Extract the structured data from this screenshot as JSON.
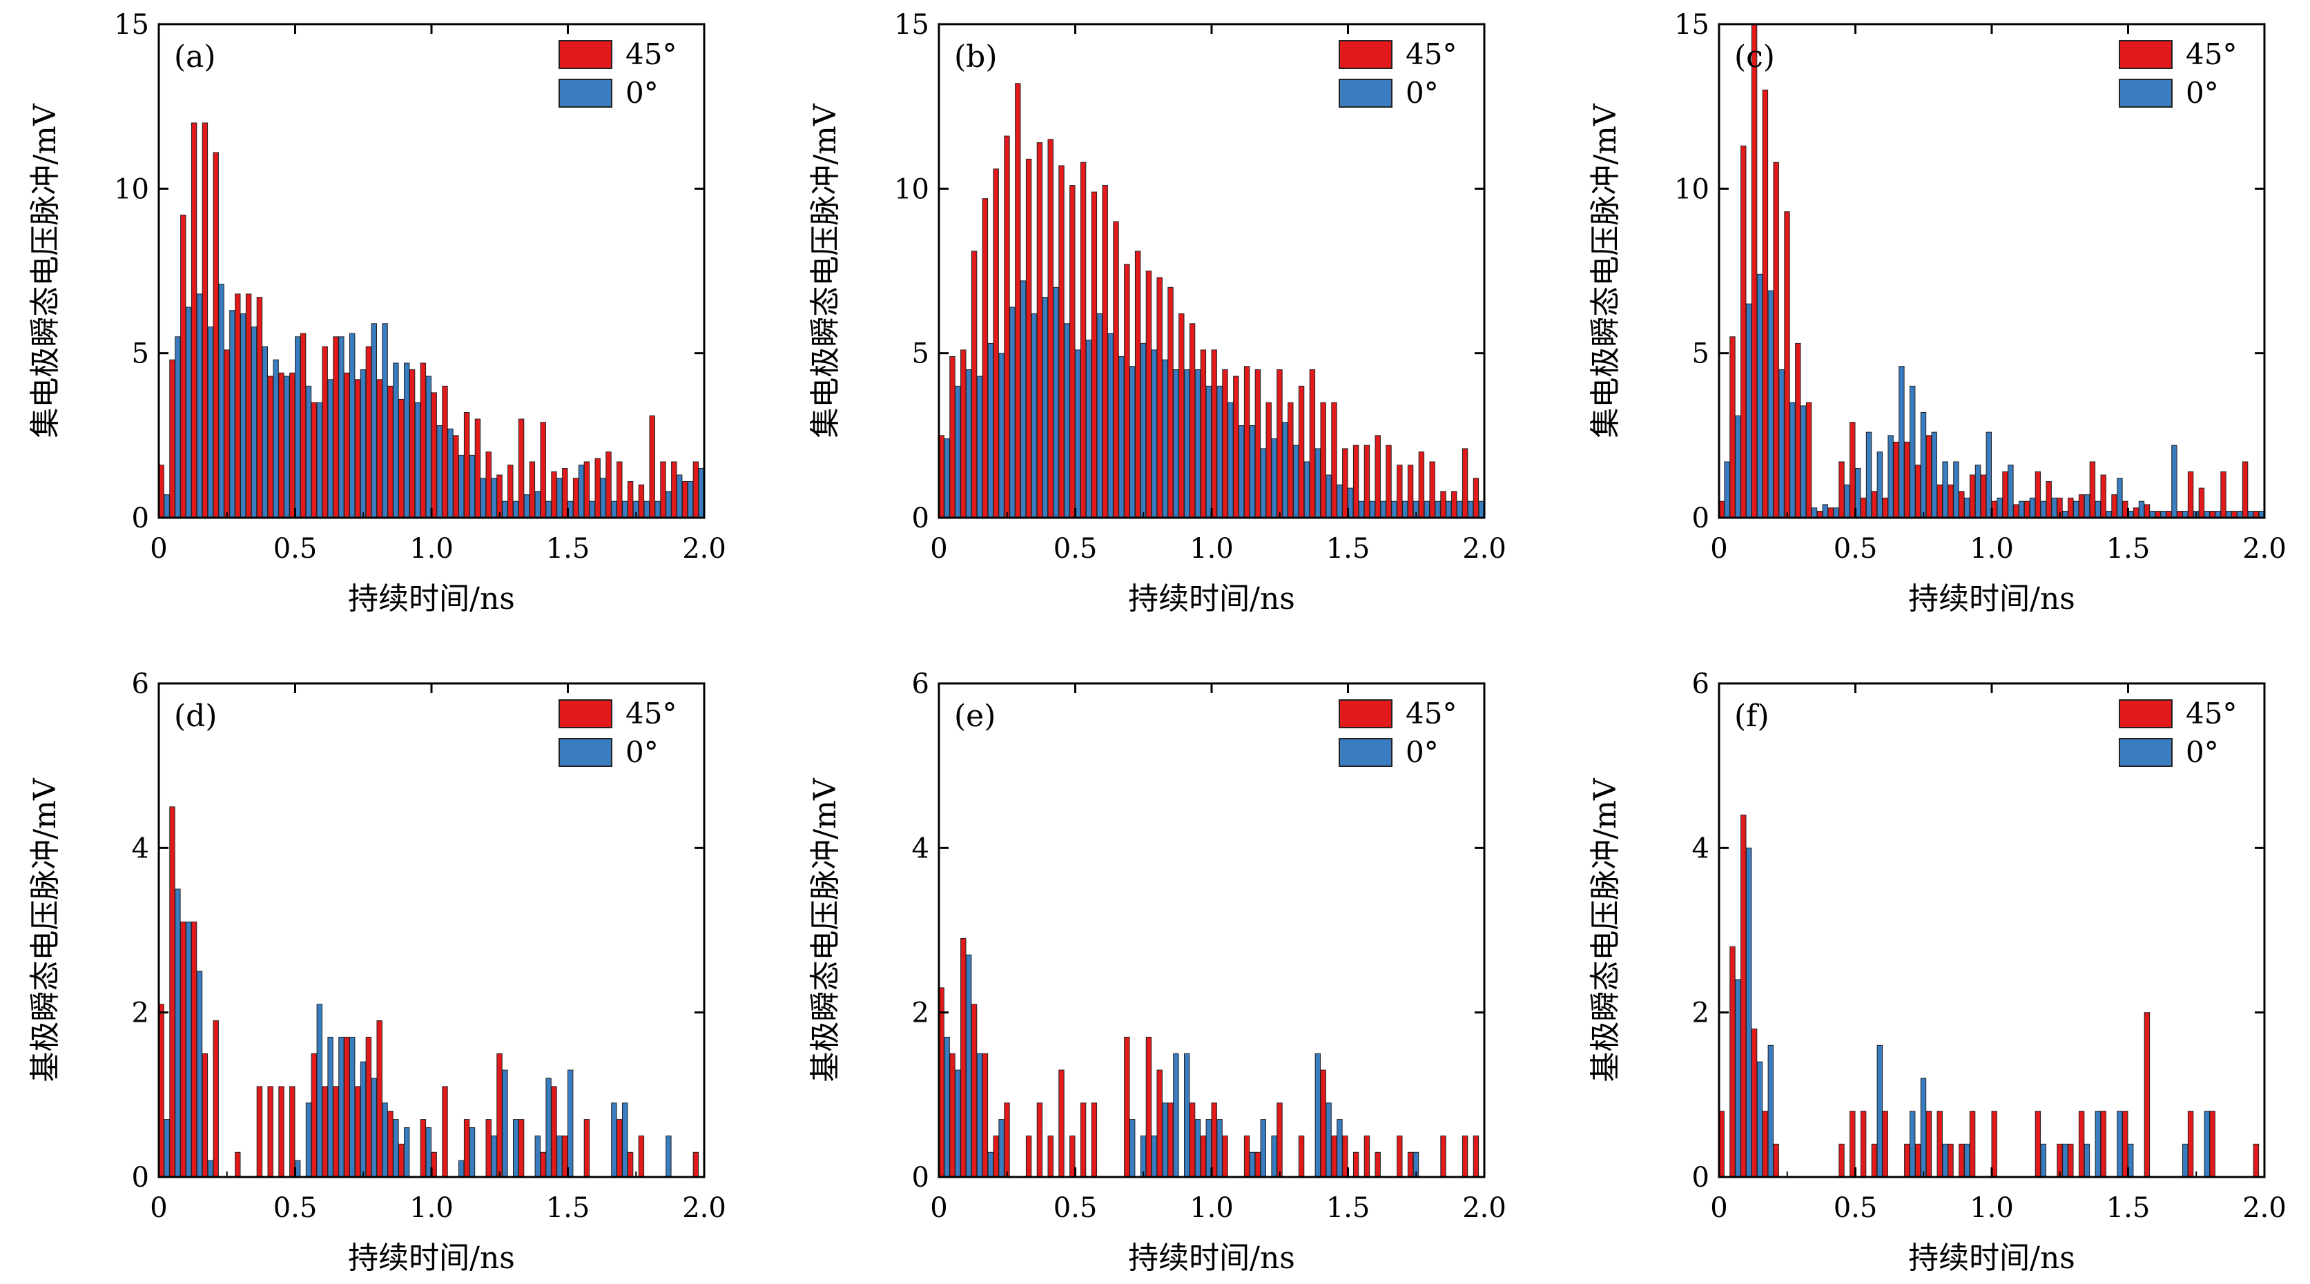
{
  "figure": {
    "legend": [
      {
        "label": "45°",
        "color": "#e31a1c"
      },
      {
        "label": "0°",
        "color": "#3a7cc0"
      }
    ],
    "colors": {
      "series_45": "#e31a1c",
      "series_0": "#3a7cc0",
      "frame": "#000000"
    }
  },
  "chart_data": [
    {
      "type": "bar",
      "panel_label": "(a)",
      "title": "",
      "xlabel": "持续时间/ns",
      "ylabel": "集电极瞬态电压脉冲/mV",
      "xlim": [
        0,
        2.0
      ],
      "ylim": [
        0,
        15
      ],
      "xticks": [
        "0",
        "0.5",
        "1.0",
        "1.5",
        "2.0"
      ],
      "yticks": [
        "0",
        "5",
        "10",
        "15"
      ],
      "legend_entries": [
        "45°",
        "0°"
      ],
      "bin_width": 0.04,
      "x": [
        0.0,
        0.04,
        0.08,
        0.12,
        0.16,
        0.2,
        0.24,
        0.28,
        0.32,
        0.36,
        0.4,
        0.44,
        0.48,
        0.52,
        0.56,
        0.6,
        0.64,
        0.68,
        0.72,
        0.76,
        0.8,
        0.84,
        0.88,
        0.92,
        0.96,
        1.0,
        1.04,
        1.08,
        1.12,
        1.16,
        1.2,
        1.24,
        1.28,
        1.32,
        1.36,
        1.4,
        1.44,
        1.48,
        1.52,
        1.56,
        1.6,
        1.64,
        1.68,
        1.72,
        1.76,
        1.8,
        1.84,
        1.88,
        1.92,
        1.96
      ],
      "series": [
        {
          "name": "45°",
          "values": [
            1.6,
            4.8,
            9.2,
            12.0,
            12.0,
            11.1,
            5.1,
            6.8,
            6.8,
            6.7,
            4.3,
            4.4,
            4.4,
            5.6,
            3.5,
            5.2,
            5.5,
            4.4,
            4.2,
            5.2,
            4.2,
            4.0,
            3.6,
            4.5,
            4.7,
            3.8,
            4.0,
            2.5,
            3.2,
            3.0,
            2.0,
            1.3,
            1.6,
            3.0,
            1.7,
            2.9,
            1.4,
            1.5,
            1.2,
            1.7,
            1.8,
            2.0,
            1.7,
            1.1,
            1.0,
            3.1,
            1.7,
            1.7,
            1.1,
            1.7
          ]
        },
        {
          "name": "0°",
          "values": [
            0.7,
            5.5,
            6.4,
            6.8,
            5.8,
            7.1,
            6.3,
            6.2,
            5.8,
            5.2,
            4.8,
            4.3,
            5.5,
            4.0,
            3.5,
            4.2,
            5.5,
            5.6,
            4.5,
            5.9,
            5.9,
            4.7,
            4.7,
            3.5,
            4.3,
            2.8,
            2.7,
            1.9,
            1.9,
            1.2,
            1.2,
            0.5,
            0.5,
            0.7,
            0.8,
            0.5,
            1.2,
            0.5,
            1.6,
            0.5,
            1.2,
            0.5,
            0.5,
            0.5,
            0.5,
            0.5,
            0.8,
            1.3,
            1.1,
            1.5
          ]
        }
      ]
    },
    {
      "type": "bar",
      "panel_label": "(b)",
      "title": "",
      "xlabel": "持续时间/ns",
      "ylabel": "集电极瞬态电压脉冲/mV",
      "xlim": [
        0,
        2.0
      ],
      "ylim": [
        0,
        15
      ],
      "xticks": [
        "0",
        "0.5",
        "1.0",
        "1.5",
        "2.0"
      ],
      "yticks": [
        "0",
        "5",
        "10",
        "15"
      ],
      "legend_entries": [
        "45°",
        "0°"
      ],
      "bin_width": 0.04,
      "x": [
        0.0,
        0.04,
        0.08,
        0.12,
        0.16,
        0.2,
        0.24,
        0.28,
        0.32,
        0.36,
        0.4,
        0.44,
        0.48,
        0.52,
        0.56,
        0.6,
        0.64,
        0.68,
        0.72,
        0.76,
        0.8,
        0.84,
        0.88,
        0.92,
        0.96,
        1.0,
        1.04,
        1.08,
        1.12,
        1.16,
        1.2,
        1.24,
        1.28,
        1.32,
        1.36,
        1.4,
        1.44,
        1.48,
        1.52,
        1.56,
        1.6,
        1.64,
        1.68,
        1.72,
        1.76,
        1.8,
        1.84,
        1.88,
        1.92,
        1.96
      ],
      "series": [
        {
          "name": "45°",
          "values": [
            2.5,
            4.9,
            5.1,
            8.1,
            9.7,
            10.6,
            11.6,
            13.2,
            10.9,
            11.4,
            11.5,
            10.7,
            10.1,
            10.8,
            9.9,
            10.1,
            9.0,
            7.7,
            8.1,
            7.5,
            7.3,
            7.0,
            6.2,
            5.9,
            5.1,
            5.1,
            4.5,
            4.3,
            4.6,
            4.5,
            3.5,
            4.5,
            3.5,
            4.0,
            4.5,
            3.5,
            3.5,
            2.1,
            2.2,
            2.2,
            2.5,
            2.2,
            1.6,
            1.6,
            2.0,
            1.7,
            0.8,
            0.8,
            2.1,
            1.2
          ]
        },
        {
          "name": "0°",
          "values": [
            2.4,
            4.0,
            4.5,
            4.3,
            5.3,
            5.0,
            6.4,
            7.2,
            6.2,
            6.7,
            7.0,
            5.9,
            5.1,
            5.4,
            6.2,
            5.6,
            4.9,
            4.6,
            5.3,
            5.1,
            4.8,
            4.5,
            4.5,
            4.5,
            4.0,
            4.0,
            3.5,
            2.8,
            2.8,
            2.1,
            2.4,
            2.9,
            2.2,
            1.7,
            2.1,
            1.3,
            1.0,
            0.9,
            0.5,
            0.5,
            0.5,
            0.5,
            0.5,
            0.5,
            0.5,
            0.5,
            0.5,
            0.5,
            0.5,
            0.5
          ]
        }
      ]
    },
    {
      "type": "bar",
      "panel_label": "(c)",
      "title": "",
      "xlabel": "持续时间/ns",
      "ylabel": "集电极瞬态电压脉冲/mV",
      "xlim": [
        0,
        2.0
      ],
      "ylim": [
        0,
        15
      ],
      "xticks": [
        "0",
        "0.5",
        "1.0",
        "1.5",
        "2.0"
      ],
      "yticks": [
        "0",
        "5",
        "10",
        "15"
      ],
      "legend_entries": [
        "45°",
        "0°"
      ],
      "bin_width": 0.04,
      "x": [
        0.0,
        0.04,
        0.08,
        0.12,
        0.16,
        0.2,
        0.24,
        0.28,
        0.32,
        0.36,
        0.4,
        0.44,
        0.48,
        0.52,
        0.56,
        0.6,
        0.64,
        0.68,
        0.72,
        0.76,
        0.8,
        0.84,
        0.88,
        0.92,
        0.96,
        1.0,
        1.04,
        1.08,
        1.12,
        1.16,
        1.2,
        1.24,
        1.28,
        1.32,
        1.36,
        1.4,
        1.44,
        1.48,
        1.52,
        1.56,
        1.6,
        1.64,
        1.68,
        1.72,
        1.76,
        1.8,
        1.84,
        1.88,
        1.92,
        1.96
      ],
      "series": [
        {
          "name": "45°",
          "values": [
            0.5,
            5.5,
            11.3,
            15.0,
            13.0,
            10.8,
            9.3,
            5.3,
            3.5,
            0.2,
            0.3,
            1.7,
            2.9,
            0.6,
            0.8,
            0.6,
            2.3,
            2.3,
            1.6,
            2.5,
            1.0,
            1.0,
            0.8,
            1.3,
            1.3,
            0.5,
            1.4,
            0.4,
            0.5,
            1.4,
            1.1,
            0.6,
            0.6,
            0.7,
            1.7,
            1.3,
            0.7,
            0.5,
            0.3,
            0.4,
            0.2,
            0.2,
            0.2,
            1.4,
            0.9,
            0.2,
            1.4,
            0.2,
            1.7,
            0.2
          ]
        },
        {
          "name": "0°",
          "values": [
            1.7,
            3.1,
            6.5,
            7.4,
            6.9,
            4.5,
            3.5,
            3.4,
            0.3,
            0.4,
            0.3,
            1.0,
            1.5,
            2.6,
            2.0,
            2.5,
            4.6,
            4.0,
            3.2,
            2.6,
            1.7,
            1.7,
            0.6,
            1.6,
            2.6,
            0.6,
            1.6,
            0.5,
            0.6,
            0.5,
            0.6,
            0.2,
            0.5,
            0.7,
            0.5,
            0.2,
            1.2,
            0.2,
            0.5,
            0.2,
            0.2,
            2.2,
            0.2,
            0.2,
            0.2,
            0.2,
            0.2,
            0.2,
            0.2,
            0.2
          ]
        }
      ]
    },
    {
      "type": "bar",
      "panel_label": "(d)",
      "title": "",
      "xlabel": "持续时间/ns",
      "ylabel": "基极瞬态电压脉冲/mV",
      "xlim": [
        0,
        2.0
      ],
      "ylim": [
        0,
        6
      ],
      "xticks": [
        "0",
        "0.5",
        "1.0",
        "1.5",
        "2.0"
      ],
      "yticks": [
        "0",
        "2",
        "4",
        "6"
      ],
      "legend_entries": [
        "45°",
        "0°"
      ],
      "bin_width": 0.04,
      "x": [
        0.0,
        0.04,
        0.08,
        0.12,
        0.16,
        0.2,
        0.24,
        0.28,
        0.32,
        0.36,
        0.4,
        0.44,
        0.48,
        0.52,
        0.56,
        0.6,
        0.64,
        0.68,
        0.72,
        0.76,
        0.8,
        0.84,
        0.88,
        0.92,
        0.96,
        1.0,
        1.04,
        1.08,
        1.12,
        1.16,
        1.2,
        1.24,
        1.28,
        1.32,
        1.36,
        1.4,
        1.44,
        1.48,
        1.52,
        1.56,
        1.6,
        1.64,
        1.68,
        1.72,
        1.76,
        1.8,
        1.84,
        1.88,
        1.92,
        1.96
      ],
      "series": [
        {
          "name": "45°",
          "values": [
            2.1,
            4.5,
            3.1,
            3.1,
            1.5,
            1.9,
            0,
            0.3,
            0,
            1.1,
            1.1,
            1.1,
            1.1,
            0,
            1.5,
            1.1,
            1.1,
            1.7,
            1.1,
            1.7,
            1.9,
            0.8,
            0.4,
            0,
            0.7,
            0.3,
            1.1,
            0,
            0.7,
            0,
            0.7,
            1.5,
            0,
            0.7,
            0,
            0.3,
            1.1,
            0.5,
            0,
            0.7,
            0,
            0,
            0.7,
            0.3,
            0.5,
            0,
            0,
            0,
            0,
            0.3
          ]
        },
        {
          "name": "0°",
          "values": [
            0.7,
            3.5,
            3.1,
            2.5,
            0.2,
            0,
            0,
            0,
            0,
            0,
            0,
            0,
            0.2,
            0.9,
            2.1,
            1.7,
            1.7,
            1.7,
            1.4,
            1.2,
            0.9,
            0.7,
            0.6,
            0,
            0.6,
            0,
            0,
            0.2,
            0.6,
            0,
            0.5,
            1.3,
            0.7,
            0,
            0.5,
            1.2,
            0.5,
            1.3,
            0,
            0,
            0,
            0.9,
            0.9,
            0,
            0,
            0,
            0.5,
            0,
            0,
            0
          ]
        }
      ]
    },
    {
      "type": "bar",
      "panel_label": "(e)",
      "title": "",
      "xlabel": "持续时间/ns",
      "ylabel": "基极瞬态电压脉冲/mV",
      "xlim": [
        0,
        2.0
      ],
      "ylim": [
        0,
        6
      ],
      "xticks": [
        "0",
        "0.5",
        "1.0",
        "1.5",
        "2.0"
      ],
      "yticks": [
        "0",
        "2",
        "4",
        "6"
      ],
      "legend_entries": [
        "45°",
        "0°"
      ],
      "bin_width": 0.04,
      "x": [
        0.0,
        0.04,
        0.08,
        0.12,
        0.16,
        0.2,
        0.24,
        0.28,
        0.32,
        0.36,
        0.4,
        0.44,
        0.48,
        0.52,
        0.56,
        0.6,
        0.64,
        0.68,
        0.72,
        0.76,
        0.8,
        0.84,
        0.88,
        0.92,
        0.96,
        1.0,
        1.04,
        1.08,
        1.12,
        1.16,
        1.2,
        1.24,
        1.28,
        1.32,
        1.36,
        1.4,
        1.44,
        1.48,
        1.52,
        1.56,
        1.6,
        1.64,
        1.68,
        1.72,
        1.76,
        1.8,
        1.84,
        1.88,
        1.92,
        1.96
      ],
      "series": [
        {
          "name": "45°",
          "values": [
            2.3,
            1.5,
            2.9,
            2.1,
            1.5,
            0.5,
            0.9,
            0,
            0.5,
            0.9,
            0.5,
            1.3,
            0.5,
            0.9,
            0.9,
            0,
            0,
            1.7,
            0,
            1.7,
            1.3,
            0.9,
            0,
            0.9,
            0.5,
            0.9,
            0.5,
            0,
            0.5,
            0.3,
            0,
            0.9,
            0,
            0.5,
            0,
            1.3,
            0.5,
            0.5,
            0.3,
            0.5,
            0.3,
            0,
            0.5,
            0.3,
            0,
            0,
            0.5,
            0,
            0.5,
            0.5
          ]
        },
        {
          "name": "0°",
          "values": [
            1.7,
            1.3,
            2.7,
            1.5,
            0.3,
            0.7,
            0,
            0,
            0,
            0,
            0,
            0,
            0,
            0,
            0,
            0,
            0,
            0.7,
            0.5,
            0.5,
            0.9,
            1.5,
            1.5,
            0.7,
            0.7,
            0.7,
            0,
            0,
            0.3,
            0.7,
            0.5,
            0,
            0,
            0,
            1.5,
            0.9,
            0.7,
            0,
            0,
            0,
            0,
            0,
            0,
            0.3,
            0,
            0,
            0,
            0,
            0,
            0
          ]
        }
      ]
    },
    {
      "type": "bar",
      "panel_label": "(f)",
      "title": "",
      "xlabel": "持续时间/ns",
      "ylabel": "基极瞬态电压脉冲/mV",
      "xlim": [
        0,
        2.0
      ],
      "ylim": [
        0,
        6
      ],
      "xticks": [
        "0",
        "0.5",
        "1.0",
        "1.5",
        "2.0"
      ],
      "yticks": [
        "0",
        "2",
        "4",
        "6"
      ],
      "legend_entries": [
        "45°",
        "0°"
      ],
      "bin_width": 0.04,
      "x": [
        0.0,
        0.04,
        0.08,
        0.12,
        0.16,
        0.2,
        0.24,
        0.28,
        0.32,
        0.36,
        0.4,
        0.44,
        0.48,
        0.52,
        0.56,
        0.6,
        0.64,
        0.68,
        0.72,
        0.76,
        0.8,
        0.84,
        0.88,
        0.92,
        0.96,
        1.0,
        1.04,
        1.08,
        1.12,
        1.16,
        1.2,
        1.24,
        1.28,
        1.32,
        1.36,
        1.4,
        1.44,
        1.48,
        1.52,
        1.56,
        1.6,
        1.64,
        1.68,
        1.72,
        1.76,
        1.8,
        1.84,
        1.88,
        1.92,
        1.96
      ],
      "series": [
        {
          "name": "45°",
          "values": [
            0.8,
            2.8,
            4.4,
            1.8,
            0.8,
            0.4,
            0,
            0,
            0,
            0,
            0,
            0.4,
            0.8,
            0.8,
            0.4,
            0.8,
            0,
            0.4,
            0.4,
            0.8,
            0.8,
            0.4,
            0.4,
            0.8,
            0,
            0.8,
            0,
            0,
            0,
            0.8,
            0,
            0.4,
            0.4,
            0.8,
            0,
            0.8,
            0,
            0.8,
            0,
            2.0,
            0,
            0,
            0,
            0.8,
            0,
            0.8,
            0,
            0,
            0,
            0.4
          ]
        },
        {
          "name": "0°",
          "values": [
            0,
            2.4,
            4.0,
            1.4,
            1.6,
            0,
            0,
            0,
            0,
            0,
            0,
            0,
            0,
            0,
            1.6,
            0,
            0,
            0.8,
            1.2,
            0,
            0.4,
            0,
            0.4,
            0,
            0,
            0,
            0,
            0,
            0,
            0.4,
            0,
            0.4,
            0,
            0.4,
            0.8,
            0,
            0.8,
            0.4,
            0,
            0,
            0,
            0,
            0.4,
            0,
            0.8,
            0,
            0,
            0,
            0,
            0
          ]
        }
      ]
    }
  ]
}
